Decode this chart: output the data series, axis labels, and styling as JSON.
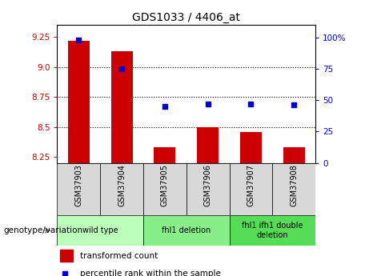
{
  "title": "GDS1033 / 4406_at",
  "samples": [
    "GSM37903",
    "GSM37904",
    "GSM37905",
    "GSM37906",
    "GSM37907",
    "GSM37908"
  ],
  "bar_values": [
    9.22,
    9.13,
    8.33,
    8.5,
    8.46,
    8.33
  ],
  "dot_values_pct": [
    98,
    75,
    45,
    47,
    47,
    46
  ],
  "ylim_left": [
    8.2,
    9.35
  ],
  "ylim_right": [
    0,
    110
  ],
  "yticks_left": [
    8.25,
    8.5,
    8.75,
    9.0,
    9.25
  ],
  "yticks_right": [
    0,
    25,
    50,
    75,
    100
  ],
  "bar_color": "#cc0000",
  "dot_color": "#0000cc",
  "bar_bottom": 8.2,
  "groups": [
    {
      "label": "wild type",
      "start": 0,
      "end": 1,
      "color": "#bbffbb"
    },
    {
      "label": "fhl1 deletion",
      "start": 2,
      "end": 3,
      "color": "#88ee88"
    },
    {
      "label": "fhl1 ifh1 double\ndeletion",
      "start": 4,
      "end": 5,
      "color": "#55dd55"
    }
  ],
  "legend_bar_label": "transformed count",
  "legend_dot_label": "percentile rank within the sample",
  "xlabel_group": "genotype/variation",
  "tick_color_left": "#cc0000",
  "tick_color_right": "#0000cc",
  "sample_box_color": "#d8d8d8"
}
